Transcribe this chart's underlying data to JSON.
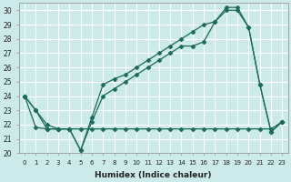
{
  "xlabel": "Humidex (Indice chaleur)",
  "background_color": "#cdeaea",
  "grid_color": "#ffffff",
  "line_color": "#1a6b5a",
  "xlim": [
    -0.5,
    23.5
  ],
  "ylim": [
    20,
    30.5
  ],
  "yticks": [
    20,
    21,
    22,
    23,
    24,
    25,
    26,
    27,
    28,
    29,
    30
  ],
  "xticks": [
    0,
    1,
    2,
    3,
    4,
    5,
    6,
    7,
    8,
    9,
    10,
    11,
    12,
    13,
    14,
    15,
    16,
    17,
    18,
    19,
    20,
    21,
    22,
    23
  ],
  "series_flat_x": [
    0,
    1,
    2,
    3,
    4,
    5,
    6,
    7,
    8,
    9,
    10,
    11,
    12,
    13,
    14,
    15,
    16,
    17,
    18,
    19,
    20,
    21,
    22,
    23
  ],
  "series_flat_y": [
    24.0,
    21.8,
    21.7,
    21.7,
    21.7,
    21.7,
    21.7,
    21.7,
    21.7,
    21.7,
    21.7,
    21.7,
    21.7,
    21.7,
    21.7,
    21.7,
    21.7,
    21.7,
    21.7,
    21.7,
    21.7,
    21.7,
    21.7,
    22.2
  ],
  "series_zigzag_x": [
    0,
    1,
    2,
    3,
    4,
    5,
    6,
    7,
    8,
    9,
    10,
    11,
    12,
    13,
    14,
    15,
    16,
    17,
    18,
    19,
    20,
    21,
    22,
    23
  ],
  "series_zigzag_y": [
    24.0,
    23.0,
    21.7,
    21.7,
    21.7,
    20.2,
    22.5,
    24.8,
    25.2,
    25.5,
    26.0,
    26.5,
    27.0,
    27.5,
    28.0,
    28.5,
    29.0,
    29.2,
    30.2,
    30.2,
    28.8,
    24.8,
    21.5,
    22.2
  ],
  "series_smooth_x": [
    0,
    1,
    2,
    3,
    4,
    5,
    6,
    7,
    8,
    9,
    10,
    11,
    12,
    13,
    14,
    15,
    16,
    17,
    18,
    19,
    20,
    21,
    22,
    23
  ],
  "series_smooth_y": [
    24.0,
    23.0,
    22.0,
    21.7,
    21.7,
    20.2,
    22.2,
    24.0,
    24.5,
    25.0,
    25.5,
    26.0,
    26.5,
    27.0,
    27.5,
    27.5,
    27.8,
    29.2,
    30.0,
    30.0,
    28.8,
    24.8,
    21.5,
    22.2
  ]
}
